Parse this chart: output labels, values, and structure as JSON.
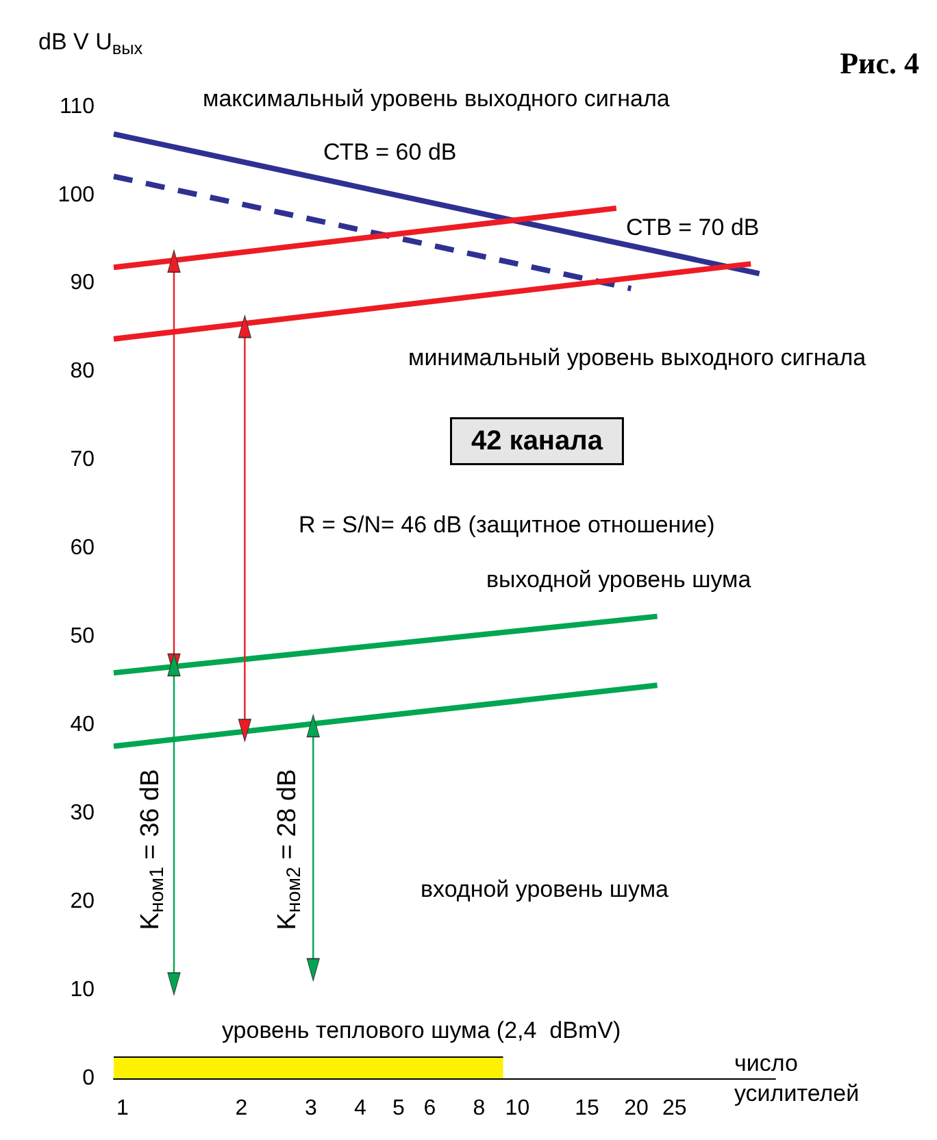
{
  "chart_data": {
    "type": "line",
    "title": "Рис. 4",
    "xlabel": "число усилителей",
    "ylabel": "dB V U$_{вых}$",
    "log": "x",
    "xlim": [
      0.95,
      45
    ],
    "xticks": [
      1,
      2,
      3,
      4,
      5,
      6,
      8,
      10,
      15,
      20,
      25
    ],
    "ylim": [
      0,
      110
    ],
    "yticks": [
      0,
      10,
      20,
      30,
      40,
      50,
      60,
      70,
      80,
      90,
      100,
      110
    ],
    "grid": false,
    "marker": "none",
    "series": [
      {
        "color": "#2e3192",
        "x": [
          0.95,
          41
        ],
        "values": [
          106.9,
          91.1
        ],
        "line_style": "solid"
      },
      {
        "color": "#2e3192",
        "x": [
          0.95,
          19.4
        ],
        "values": [
          102.1,
          89.4
        ],
        "line_style": "dashed"
      },
      {
        "color": "#ed1c24",
        "x": [
          0.95,
          17.8
        ],
        "values": [
          91.8,
          98.5
        ],
        "line_style": "solid"
      },
      {
        "color": "#ed1c24",
        "x": [
          0.95,
          39
        ],
        "values": [
          83.7,
          92.2
        ],
        "line_style": "solid"
      },
      {
        "color": "#00a651",
        "x": [
          0.95,
          22.6
        ],
        "values": [
          45.9,
          52.3
        ],
        "line_style": "solid"
      },
      {
        "color": "#00a651",
        "x": [
          0.95,
          22.6
        ],
        "values": [
          37.6,
          44.5
        ],
        "line_style": "solid"
      },
      {
        "type": "area",
        "color": "#fff200",
        "x": [
          0.95,
          9.2
        ],
        "values": [
          2.4,
          2.4
        ]
      },
      {
        "color": "#ed1c24",
        "x": [
          1.35,
          1.35
        ],
        "values": [
          92.5,
          46.8
        ],
        "marker": "triangle"
      },
      {
        "color": "#ed1c24",
        "x": [
          2.04,
          2.04
        ],
        "values": [
          85.1,
          39.4
        ],
        "marker": "triangle"
      },
      {
        "color": "#00a651",
        "x": [
          1.35,
          1.35
        ],
        "values": [
          46.8,
          10.7
        ],
        "marker": "triangle"
      },
      {
        "color": "#00a651",
        "x": [
          3.04,
          3.04
        ],
        "values": [
          39.9,
          12.3
        ],
        "marker": "triangle"
      }
    ],
    "annotations": [
      "максимальный уровень выходного сигнала",
      "СТВ = 60 dB",
      "СТВ = 70 dB",
      "минимальный уровень выходного сигнала",
      "42 канала",
      "R = S/N= 46 dB (защитное отношение)",
      "выходной уровень шума",
      "K$_{ном1}$ = 36 dB",
      "K$_{ном2}$ = 28 dB",
      "входной уровень шума",
      "уровень теплового шума (2,4  dBmV)"
    ]
  }
}
